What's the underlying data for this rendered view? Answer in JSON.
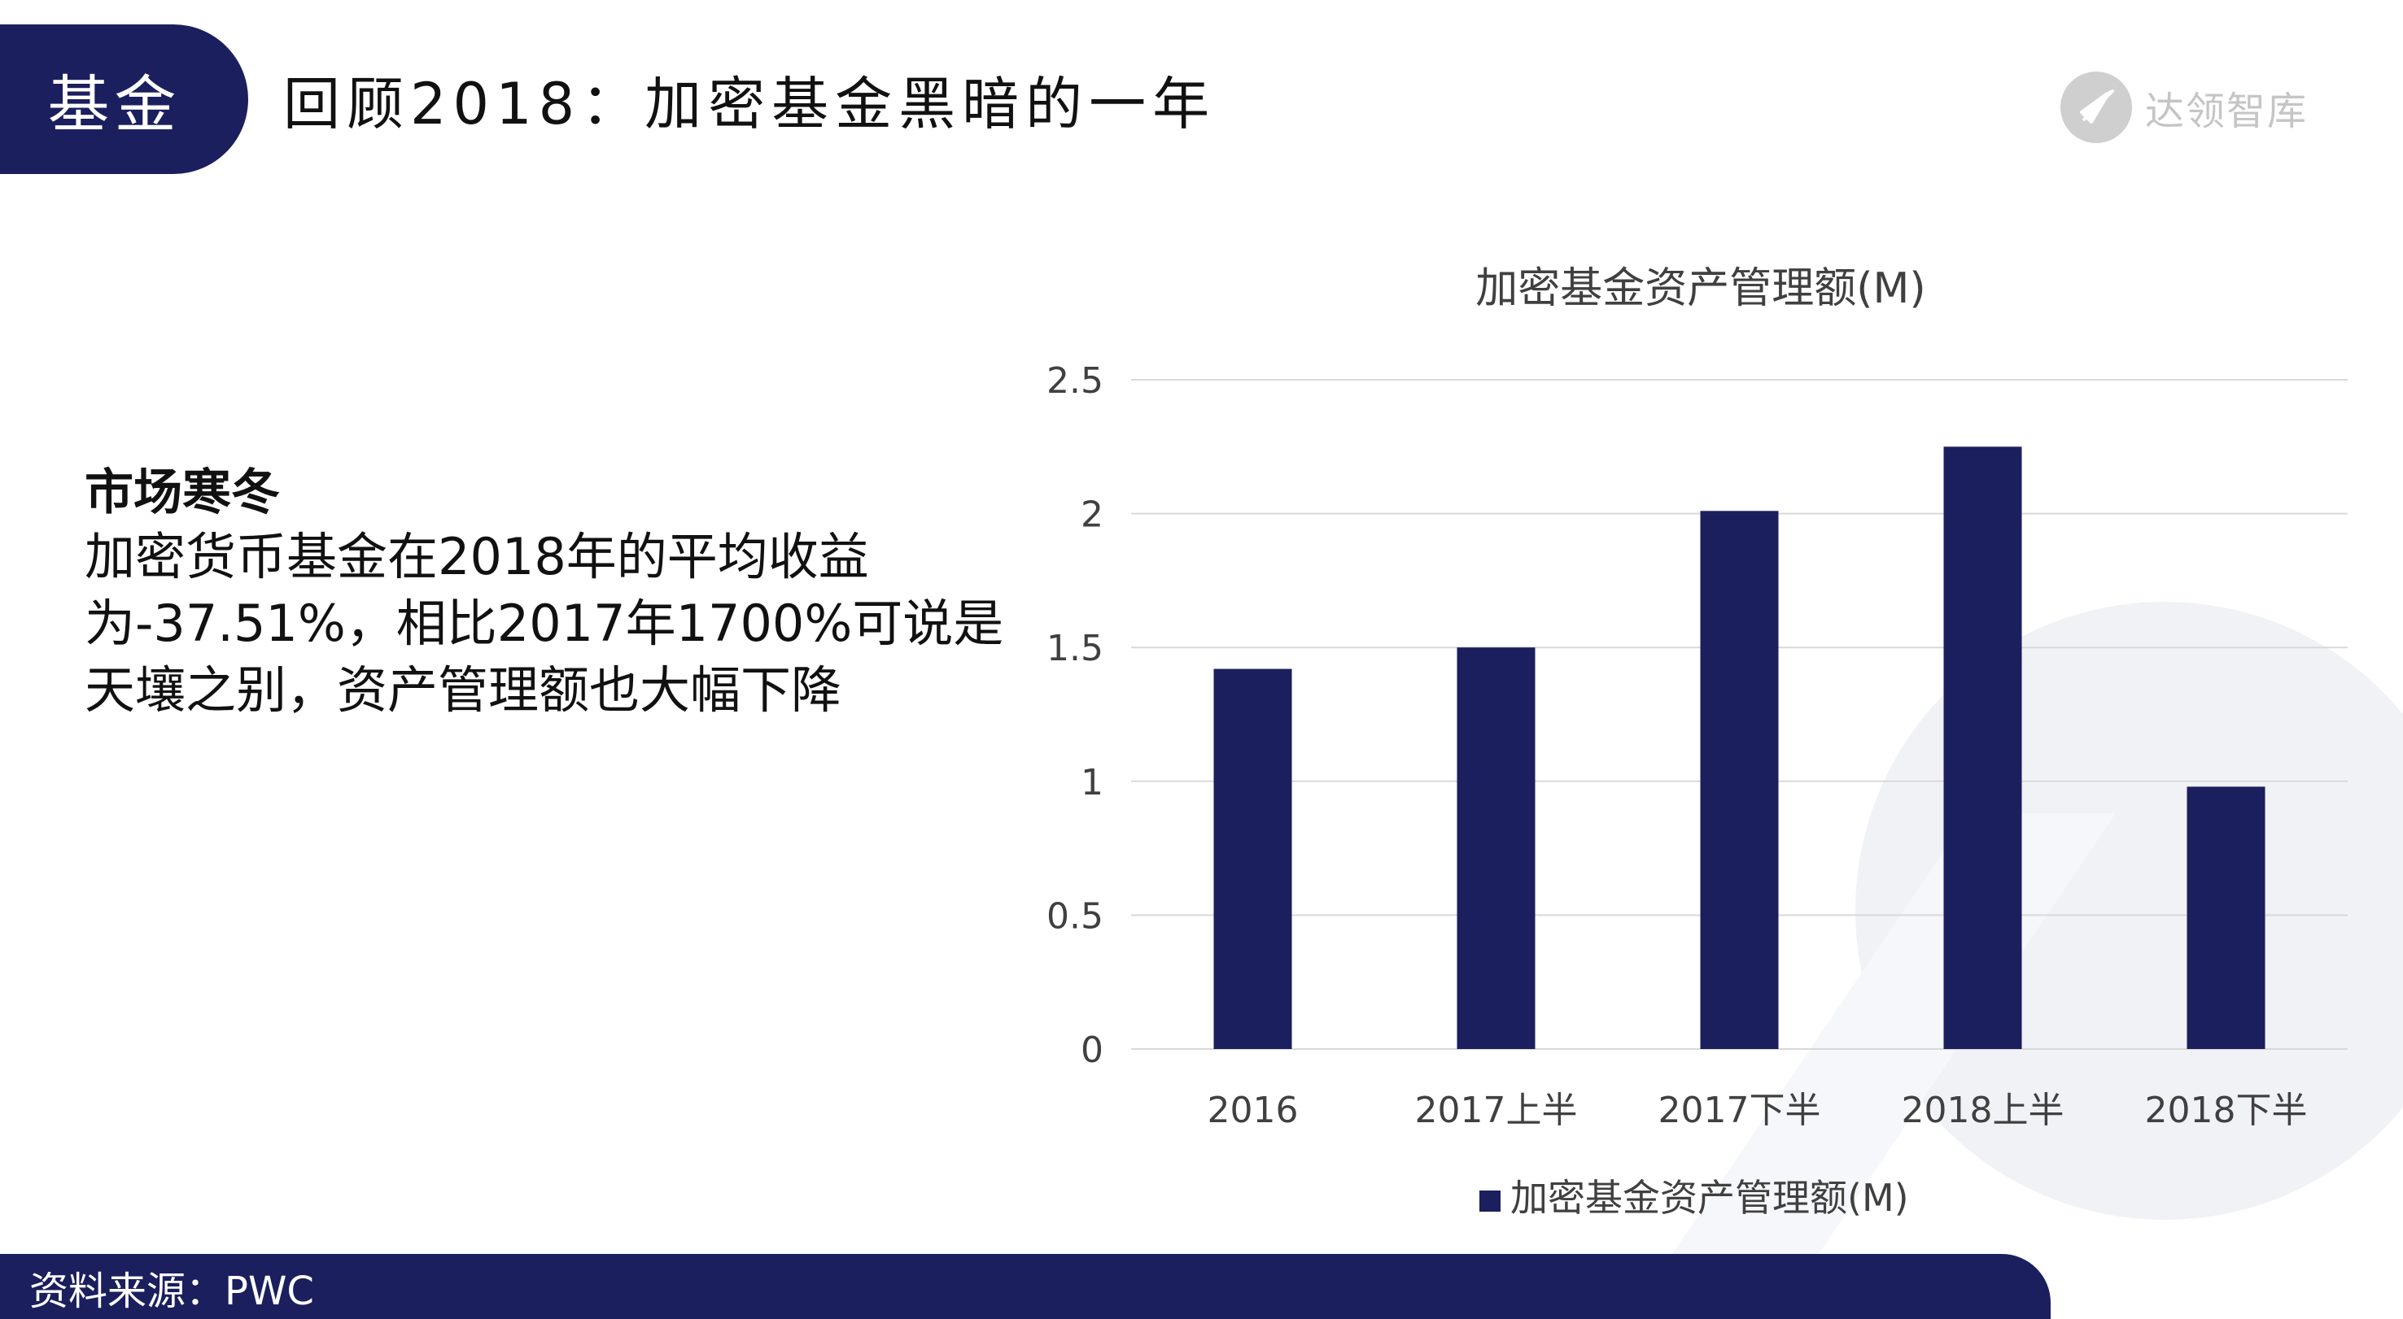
{
  "header": {
    "tag": "基金",
    "title": "回顾2018：加密基金黑暗的一年",
    "brand": "达领智库"
  },
  "content": {
    "heading": "市场寒冬",
    "body": "加密货币基金在2018年的平均收益为-37.51%，相比2017年1700%可说是天壤之别，资产管理额也大幅下降"
  },
  "footer": {
    "source": "资料来源：PWC"
  },
  "colors": {
    "brand_navy": "#1b1f5e",
    "bar": "#1b1f5e",
    "grid": "#d9d9d9"
  },
  "chart_data": {
    "type": "bar",
    "title": "加密基金资产管理额(M)",
    "categories": [
      "2016",
      "2017上半",
      "2017下半",
      "2018上半",
      "2018下半"
    ],
    "series": [
      {
        "name": "加密基金资产管理额(M)",
        "values": [
          1.42,
          1.5,
          2.01,
          2.25,
          0.98
        ]
      }
    ],
    "ylim": [
      0,
      2.5
    ],
    "yticks": [
      "0",
      "0.5",
      "1",
      "1.5",
      "2",
      "2.5"
    ],
    "grid": true,
    "legend": "bottom"
  }
}
